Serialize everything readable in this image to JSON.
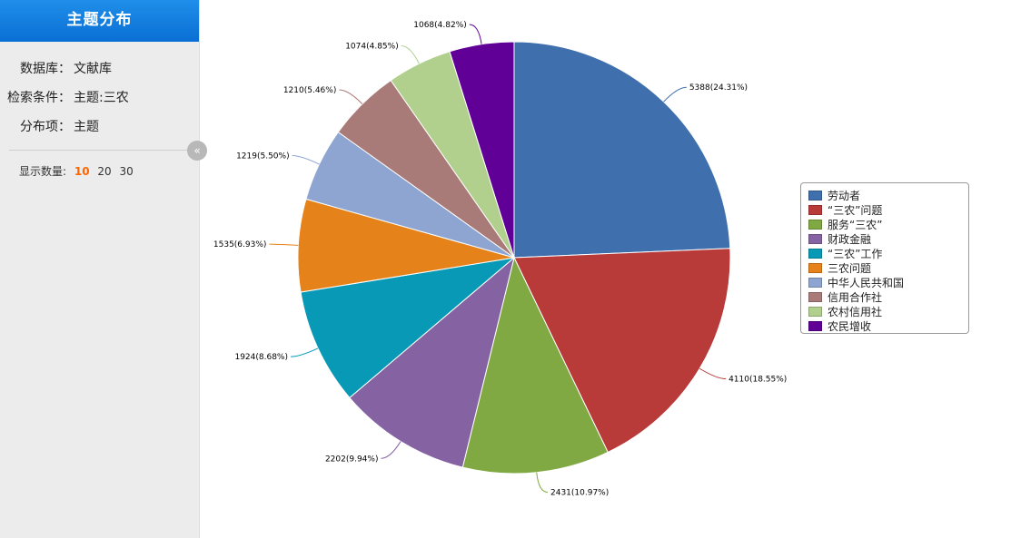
{
  "sidebar": {
    "title": "主题分布",
    "database_label": "数据库：",
    "database_value": "文献库",
    "condition_label": "检索条件：",
    "condition_value": "主题:三农",
    "dimension_label": "分布项：",
    "dimension_value": "主题",
    "count_label": "显示数量:",
    "count_options": [
      "10",
      "20",
      "30"
    ],
    "count_selected": "10",
    "collapse_icon": "double-chevron-left-icon"
  },
  "chart_data": {
    "type": "pie",
    "categories": [
      "劳动者",
      "“三农”问题",
      "服务“三农”",
      "财政金融",
      "“三农”工作",
      "三农问题",
      "中华人民共和国",
      "信用合作社",
      "农村信用社",
      "农民增收"
    ],
    "values": [
      5388,
      4110,
      2431,
      2202,
      1924,
      1535,
      1219,
      1210,
      1074,
      1068
    ],
    "percents": [
      "24.31%",
      "18.55%",
      "10.97%",
      "9.94%",
      "8.68%",
      "6.93%",
      "5.50%",
      "5.46%",
      "4.85%",
      "4.82%"
    ],
    "colors": [
      "#3f6fad",
      "#b83a39",
      "#80a843",
      "#8562a2",
      "#0899b7",
      "#e6821a",
      "#8ea5d1",
      "#a97b78",
      "#b1d08e",
      "#600096"
    ],
    "legend_position": "right"
  }
}
